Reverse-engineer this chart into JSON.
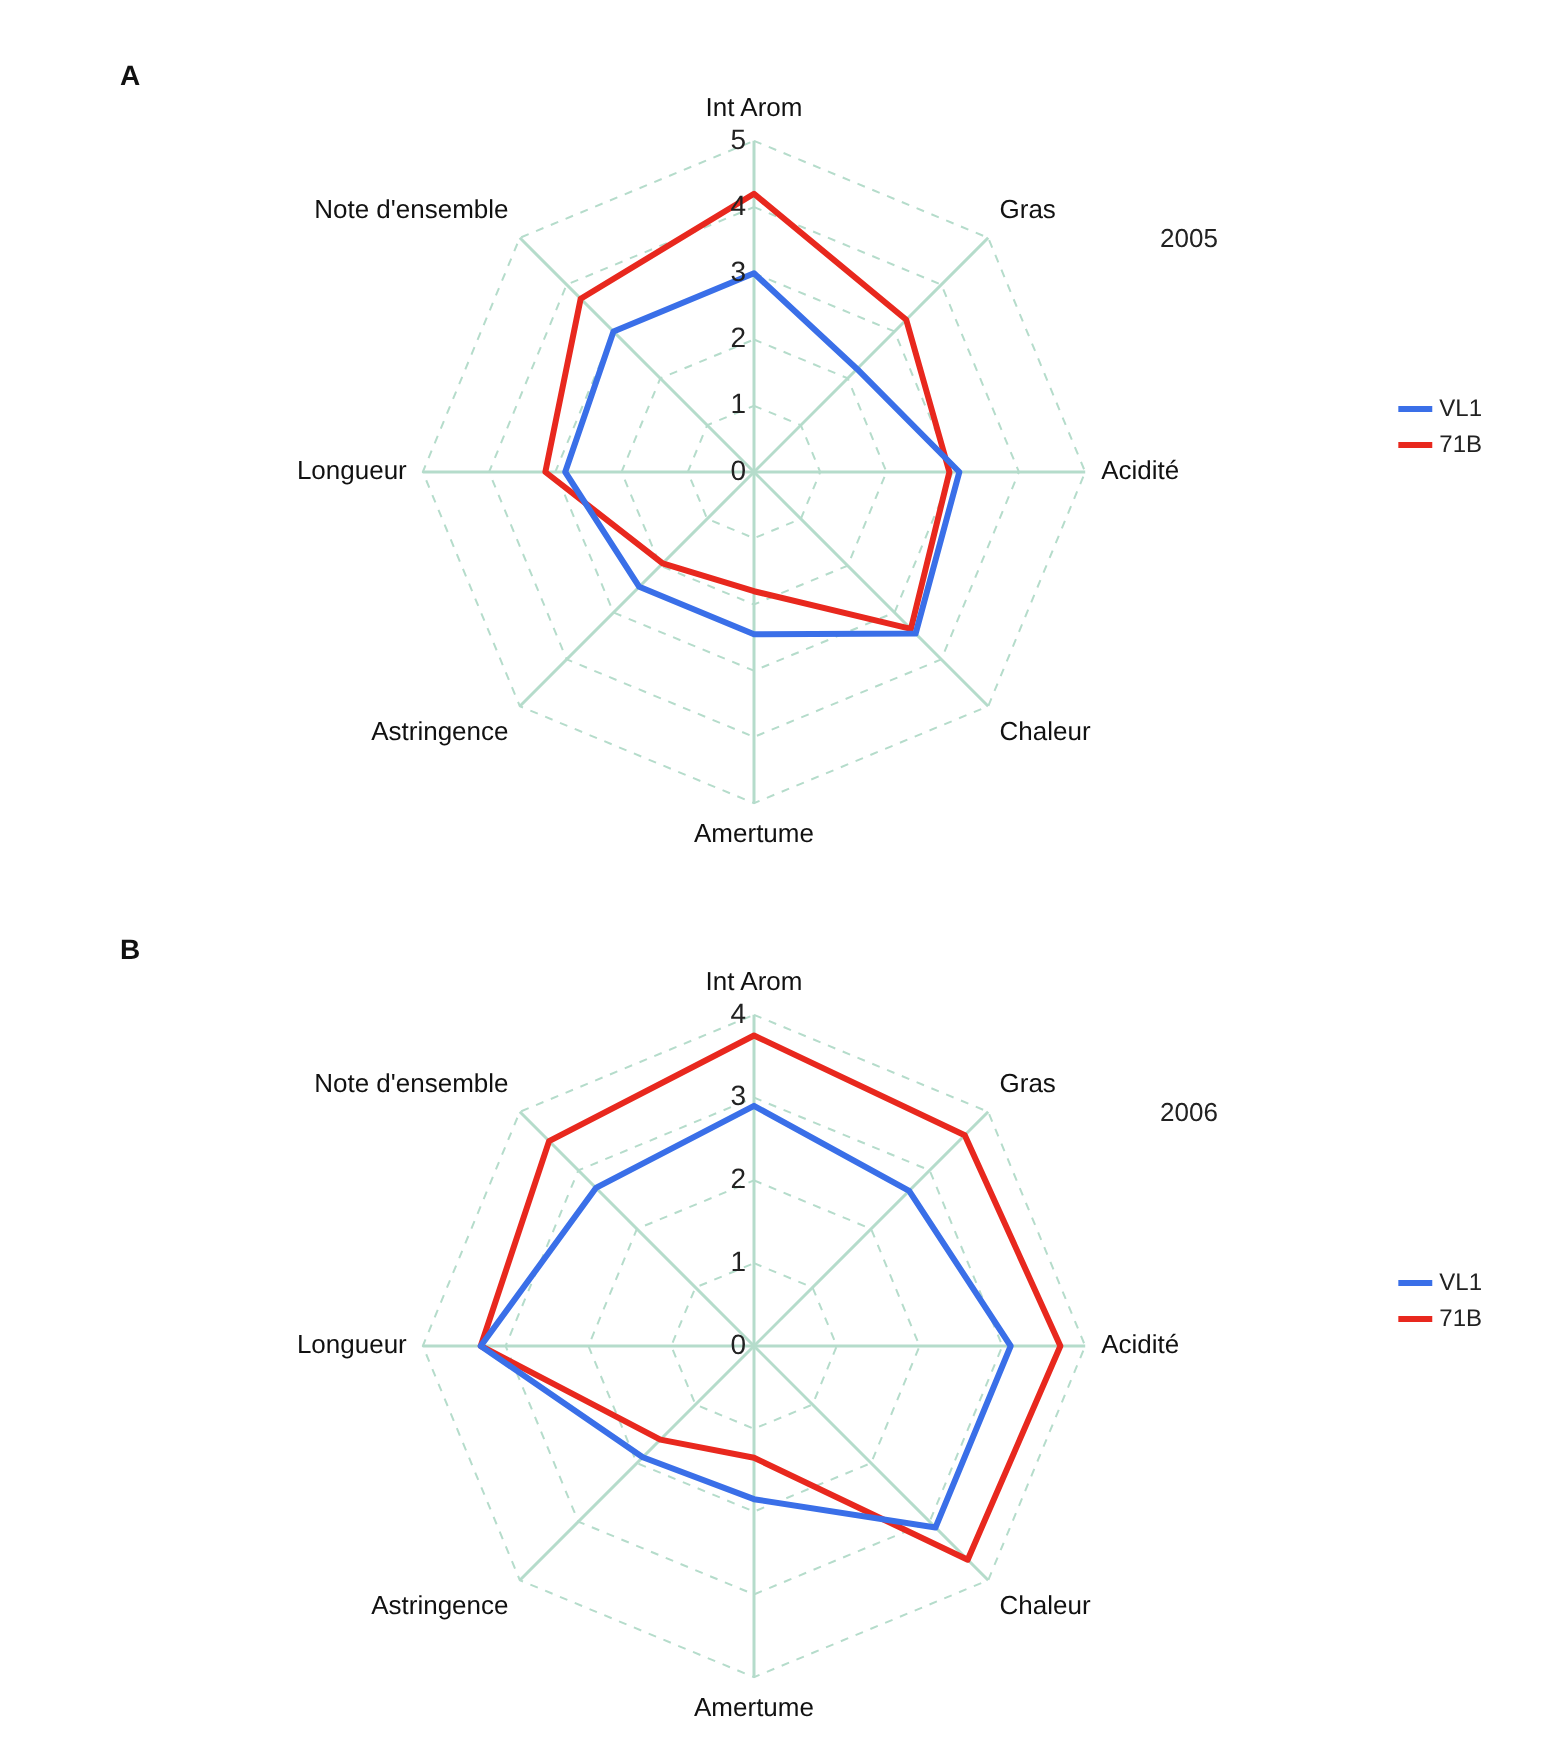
{
  "chart_data": [
    {
      "type": "radar",
      "title": "A",
      "subtitle": "2005",
      "categories": [
        "Int Arom",
        "Gras",
        "Acidité",
        "Chaleur",
        "Amertume",
        "Astringence",
        "Longueur",
        "Note d'ensemble"
      ],
      "series": [
        {
          "name": "VL1",
          "color": "#3a6fe8",
          "values": [
            3.0,
            2.2,
            3.1,
            3.45,
            2.45,
            2.45,
            2.85,
            3.0
          ]
        },
        {
          "name": "71B",
          "color": "#e8281e",
          "values": [
            4.2,
            3.25,
            2.95,
            3.35,
            1.8,
            1.95,
            3.15,
            3.7
          ]
        }
      ],
      "ylim": [
        0,
        5
      ],
      "yticks": [
        0,
        1,
        2,
        3,
        4,
        5
      ],
      "grid": true,
      "legend": "right",
      "marker": "none",
      "line_style": "solid"
    },
    {
      "type": "radar",
      "title": "B",
      "subtitle": "2006",
      "categories": [
        "Int Arom",
        "Gras",
        "Acidité",
        "Chaleur",
        "Amertume",
        "Astringence",
        "Longueur",
        "Note d'ensemble"
      ],
      "series": [
        {
          "name": "VL1",
          "color": "#3a6fe8",
          "values": [
            2.9,
            2.65,
            3.1,
            3.1,
            1.85,
            1.9,
            3.3,
            2.7
          ]
        },
        {
          "name": "71B",
          "color": "#e8281e",
          "values": [
            3.75,
            3.6,
            3.7,
            3.65,
            1.35,
            1.6,
            3.3,
            3.5
          ]
        }
      ],
      "ylim": [
        0,
        4
      ],
      "yticks": [
        0,
        1,
        2,
        3,
        4
      ],
      "grid": true,
      "legend": "right",
      "marker": "none",
      "line_style": "solid"
    }
  ]
}
